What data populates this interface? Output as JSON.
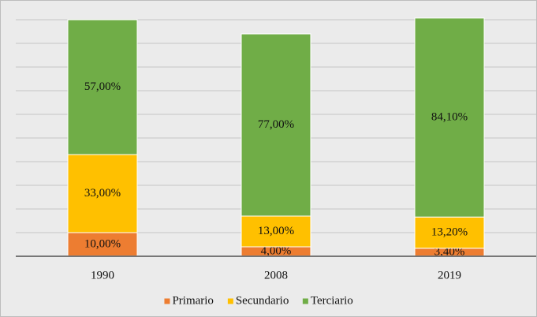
{
  "chart_data": {
    "type": "stacked_bar",
    "categories": [
      "1990",
      "2008",
      "2019"
    ],
    "series": [
      {
        "name": "Primario",
        "color": "#ed7d31",
        "values": [
          10,
          4,
          3.4
        ],
        "value_labels": [
          "10,00%",
          "4,00%",
          "3,40%"
        ]
      },
      {
        "name": "Secundario",
        "color": "#ffc000",
        "values": [
          33,
          13,
          13.2
        ],
        "value_labels": [
          "33,00%",
          "13,00%",
          "13,20%"
        ]
      },
      {
        "name": "Terciario",
        "color": "#70ad47",
        "values": [
          57,
          77,
          84.1
        ],
        "value_labels": [
          "57,00%",
          "77,00%",
          "84,10%"
        ]
      }
    ],
    "ylim": [
      0,
      100
    ],
    "yticks": [
      0,
      10,
      20,
      30,
      40,
      50,
      60,
      70,
      80,
      90,
      100
    ],
    "grid": true,
    "legend": "bottom"
  }
}
